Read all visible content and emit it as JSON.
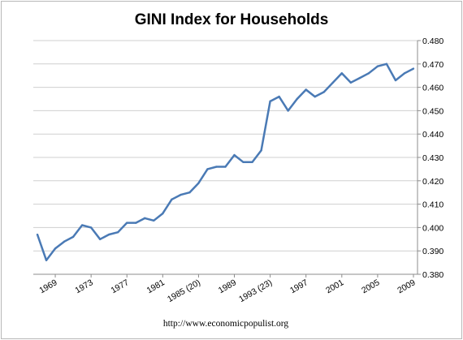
{
  "chart_data": {
    "type": "line",
    "title": "GINI Index for Households",
    "footer": "http://www.economicpopulist.org",
    "ylim": [
      0.38,
      0.48
    ],
    "y_ticks": [
      "0.380",
      "0.390",
      "0.400",
      "0.410",
      "0.420",
      "0.430",
      "0.440",
      "0.450",
      "0.460",
      "0.470",
      "0.480"
    ],
    "x_tick_labels": [
      "1969",
      "1973",
      "1977",
      "1981",
      "1985 (20)",
      "1989",
      "1993 (23)",
      "1997",
      "2001",
      "2005",
      "2009"
    ],
    "grid": true,
    "y_axis_side": "right",
    "line_color": "#4a7ab5",
    "series": [
      {
        "values": [
          0.397,
          0.386,
          0.391,
          0.394,
          0.396,
          0.401,
          0.4,
          0.395,
          0.397,
          0.398,
          0.402,
          0.402,
          0.404,
          0.403,
          0.406,
          0.412,
          0.414,
          0.415,
          0.419,
          0.425,
          0.426,
          0.426,
          0.431,
          0.428,
          0.428,
          0.433,
          0.454,
          0.456,
          0.45,
          0.455,
          0.459,
          0.456,
          0.458,
          0.462,
          0.466,
          0.462,
          0.464,
          0.466,
          0.469,
          0.47,
          0.463,
          0.466,
          0.468
        ]
      }
    ]
  }
}
